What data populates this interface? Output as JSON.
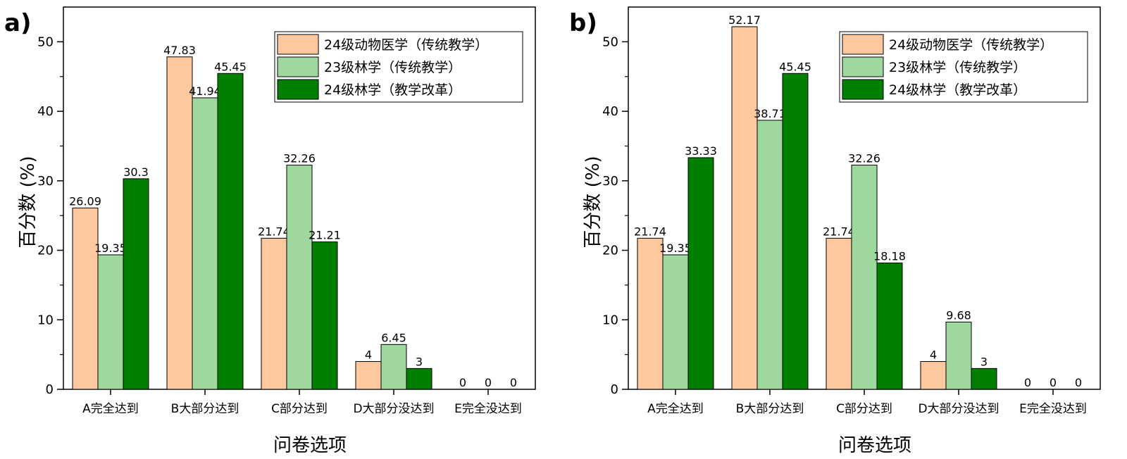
{
  "colors": {
    "series": [
      "#fdc89d",
      "#9ed89e",
      "#007f00"
    ],
    "frame": "#000000"
  },
  "chart_data": [
    {
      "type": "bar",
      "panel_label": "a)",
      "xlabel": "问卷选项",
      "ylabel": "百分数 (%)",
      "ylim": [
        0,
        55
      ],
      "yticks": [
        "0",
        "10",
        "20",
        "30",
        "40",
        "50"
      ],
      "legend_position": "top-right",
      "grid": false,
      "categories": [
        "A完全达到",
        "B大部分达到",
        "C部分达到",
        "D大部分没达到",
        "E完全没达到"
      ],
      "series": [
        {
          "name": "24级动物医学（传统教学）",
          "values": [
            26.09,
            47.83,
            21.74,
            4,
            0
          ],
          "labels": [
            "26.09",
            "47.83",
            "21.74",
            "4",
            "0"
          ]
        },
        {
          "name": "23级林学（传统教学）",
          "values": [
            19.35,
            41.94,
            32.26,
            6.45,
            0
          ],
          "labels": [
            "19.35",
            "41.94",
            "32.26",
            "6.45",
            "0"
          ]
        },
        {
          "name": "24级林学（教学改革）",
          "values": [
            30.3,
            45.45,
            21.21,
            3,
            0
          ],
          "labels": [
            "30.3",
            "45.45",
            "21.21",
            "3",
            "0"
          ]
        }
      ]
    },
    {
      "type": "bar",
      "panel_label": "b)",
      "xlabel": "问卷选项",
      "ylabel": "百分数 (%)",
      "ylim": [
        0,
        55
      ],
      "yticks": [
        "0",
        "10",
        "20",
        "30",
        "40",
        "50"
      ],
      "legend_position": "top-right",
      "grid": false,
      "categories": [
        "A完全达到",
        "B大部分达到",
        "C部分达到",
        "D大部分没达到",
        "E完全没达到"
      ],
      "series": [
        {
          "name": "24级动物医学（传统教学）",
          "values": [
            21.74,
            52.17,
            21.74,
            4,
            0
          ],
          "labels": [
            "21.74",
            "52.17",
            "21.74",
            "4",
            "0"
          ]
        },
        {
          "name": "23级林学（传统教学）",
          "values": [
            19.35,
            38.71,
            32.26,
            9.68,
            0
          ],
          "labels": [
            "19.35",
            "38.71",
            "32.26",
            "9.68",
            "0"
          ]
        },
        {
          "name": "24级林学（教学改革）",
          "values": [
            33.33,
            45.45,
            18.18,
            3,
            0
          ],
          "labels": [
            "33.33",
            "45.45",
            "18.18",
            "3",
            "0"
          ]
        }
      ]
    }
  ]
}
